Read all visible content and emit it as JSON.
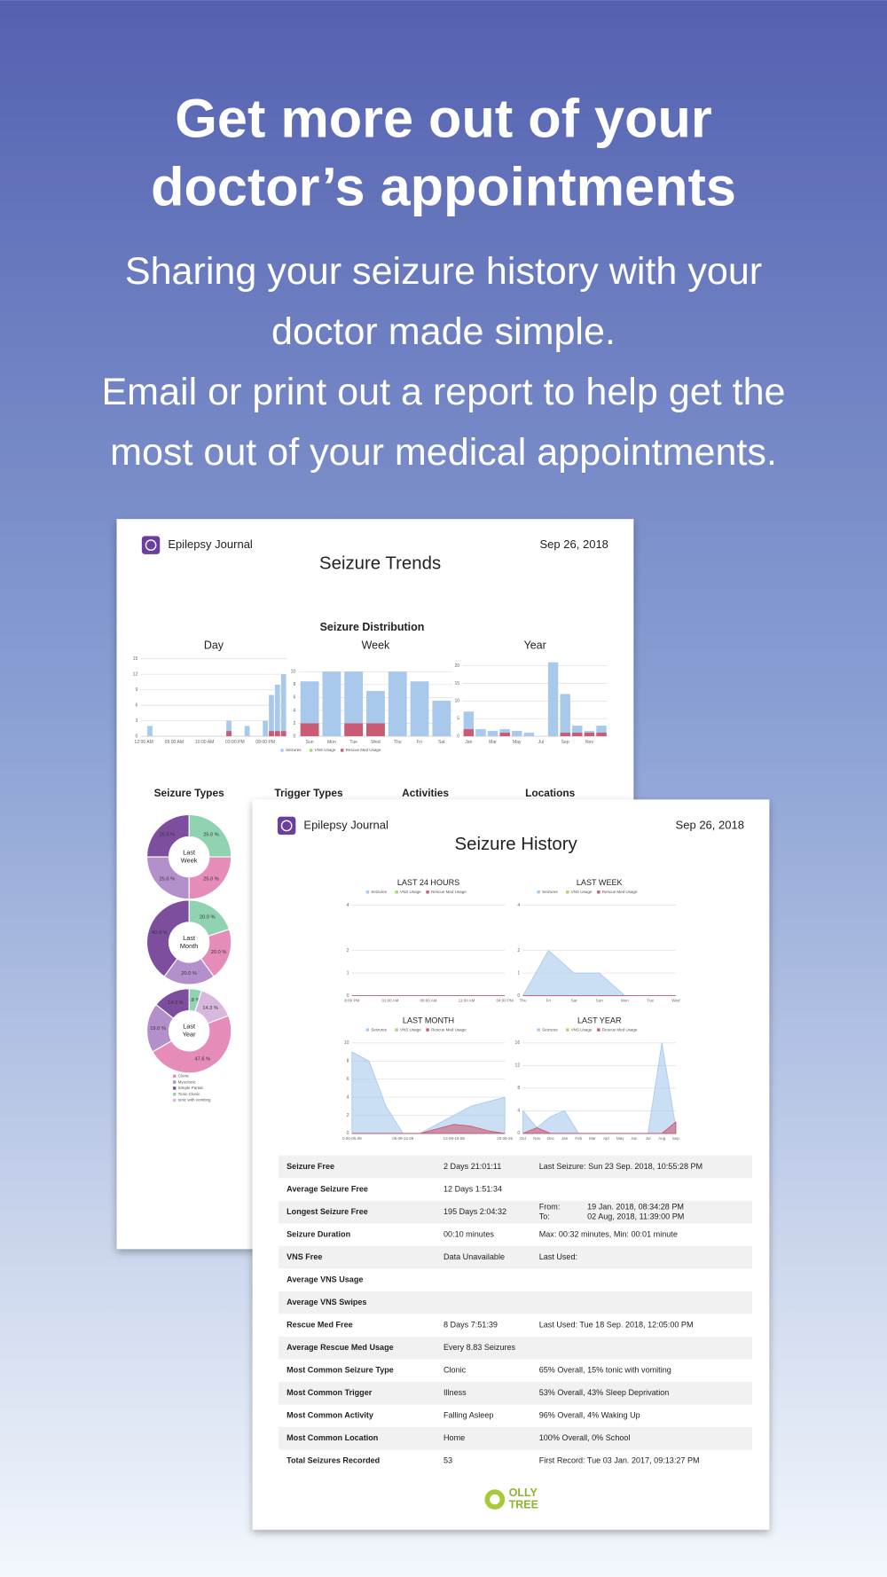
{
  "header": {
    "title_lines": [
      "Get more out of your",
      "doctor’s appointments"
    ],
    "subtitle_lines": [
      "Sharing your seizure history with your",
      "doctor made simple.",
      "Email or print out a report to help get the",
      "most out of your medical appointments."
    ]
  },
  "trends_report": {
    "app_name": "Epilepsy Journal",
    "date": "Sep 26, 2018",
    "title": "Seizure Trends",
    "distribution_title": "Seizure Distribution",
    "charts": [
      {
        "type": "bar",
        "title": "Day",
        "categories": [
          "12:00 AM",
          null,
          null,
          null,
          null,
          "05:00 AM",
          null,
          null,
          null,
          null,
          "10:00 AM",
          null,
          null,
          null,
          null,
          "03:00 PM",
          null,
          null,
          null,
          null,
          "08:00 PM",
          null,
          null,
          null
        ],
        "ylim": [
          0,
          15
        ],
        "yticks": [
          0,
          3,
          6,
          9,
          12,
          15
        ],
        "series": [
          {
            "name": "Seizures",
            "color": "#a9c9ec",
            "values": [
              0,
              2,
              0,
              0,
              0,
              0,
              0,
              0,
              0,
              0,
              0,
              0,
              0,
              0,
              3,
              0,
              0,
              2,
              0,
              0,
              3,
              8,
              10,
              12
            ]
          },
          {
            "name": "Rescue Med Usage",
            "color": "#c95b74",
            "values": [
              0,
              0,
              0,
              0,
              0,
              0,
              0,
              0,
              0,
              0,
              0,
              0,
              0,
              0,
              1,
              0,
              0,
              0,
              0,
              0,
              0,
              1,
              1,
              1
            ]
          }
        ]
      },
      {
        "type": "bar",
        "title": "Week",
        "categories": [
          "Sun",
          "Mon",
          "Tue",
          "Wed",
          "Thu",
          "Fri",
          "Sat"
        ],
        "ylim": [
          0,
          12
        ],
        "yticks": [
          0,
          2,
          4,
          6,
          8,
          10
        ],
        "series": [
          {
            "name": "Seizures",
            "color": "#a9c9ec",
            "values": [
              8.5,
              10,
              10,
              7,
              10,
              8.5,
              5.5
            ]
          },
          {
            "name": "Rescue Med Usage",
            "color": "#c95b74",
            "values": [
              2,
              0,
              2,
              2,
              0,
              0,
              0
            ]
          }
        ]
      },
      {
        "type": "bar",
        "title": "Year",
        "categories": [
          "Jan",
          null,
          "Mar",
          null,
          "May",
          null,
          "Jul",
          null,
          "Sep",
          null,
          "Nov",
          null
        ],
        "ylim": [
          0,
          22
        ],
        "yticks": [
          0,
          5,
          10,
          15,
          20
        ],
        "series": [
          {
            "name": "Seizures",
            "color": "#a9c9ec",
            "values": [
              7,
              2,
              1.5,
              2,
              1.5,
              1,
              0,
              21,
              12,
              3,
              1.5,
              3
            ]
          },
          {
            "name": "Rescue Med Usage",
            "color": "#c95b74",
            "values": [
              2,
              0,
              0,
              1,
              0,
              0,
              0,
              0,
              1,
              1,
              1,
              1
            ]
          }
        ]
      }
    ],
    "legend": [
      {
        "name": "Seizures",
        "color": "#a9c9ec"
      },
      {
        "name": "VNS Usage",
        "color": "#a6d96a"
      },
      {
        "name": "Rescue Med Usage",
        "color": "#c95b74"
      }
    ],
    "section_titles": [
      "Seizure Types",
      "Trigger Types",
      "Activities",
      "Locations"
    ],
    "pies": [
      {
        "type": "pie",
        "label_lines": [
          "Last",
          "Week"
        ],
        "values": [
          25,
          25,
          25,
          25
        ],
        "value_labels": [
          "25.0 %",
          "25.0 %",
          "25.0 %",
          "25.0 %"
        ],
        "colors": [
          "#8fd3b0",
          "#e58cb8",
          "#b38fcc",
          "#7d4e9e"
        ]
      },
      {
        "type": "pie",
        "label_lines": [
          "Last",
          "Month"
        ],
        "values": [
          20,
          20,
          20,
          40
        ],
        "value_labels": [
          "20.0 %",
          "20.0 %",
          "20.0 %",
          "40.0 %"
        ],
        "colors": [
          "#8fd3b0",
          "#e58cb8",
          "#b38fcc",
          "#7d4e9e"
        ]
      },
      {
        "type": "pie",
        "label_lines": [
          "Last",
          "Year"
        ],
        "values": [
          4.8,
          14.3,
          47.6,
          19.0,
          14.3
        ],
        "value_labels": [
          "4.8 %",
          "14.3 %",
          "47.6 %",
          "19.0 %",
          "14.3 %"
        ],
        "colors": [
          "#8fd3b0",
          "#d9b8dd",
          "#e58cb8",
          "#b38fcc",
          "#7d4e9e"
        ]
      }
    ],
    "pie_legend": [
      {
        "name": "Clonic",
        "color": "#e58cb8"
      },
      {
        "name": "Myoclonic",
        "color": "#b38fcc"
      },
      {
        "name": "Simple Partial",
        "color": "#7d4e9e"
      },
      {
        "name": "Tonic-Clonic",
        "color": "#8fd3b0"
      },
      {
        "name": "tonic with vomiting",
        "color": "#d9b8dd"
      }
    ]
  },
  "history_report": {
    "app_name": "Epilepsy Journal",
    "date": "Sep 26, 2018",
    "title": "Seizure History",
    "legend": [
      {
        "name": "Seizures",
        "color": "#a9c9ec"
      },
      {
        "name": "VNS Usage",
        "color": "#a6d96a"
      },
      {
        "name": "Rescue Med Usage",
        "color": "#c95b74"
      }
    ],
    "charts": [
      {
        "type": "area",
        "title": "LAST 24 HOURS",
        "categories": [
          "8:00 PM",
          "01:00 AM",
          "06:00 AM",
          "11:00 AM",
          "04:00 PM"
        ],
        "ylim": [
          0,
          4
        ],
        "yticks": [
          0,
          1,
          2,
          4
        ],
        "series": [
          {
            "name": "Seizures",
            "color": "#a9c9ec",
            "values": [
              0,
              0,
              0,
              0,
              0
            ]
          },
          {
            "name": "Rescue Med Usage",
            "color": "#c95b74",
            "values": [
              0,
              0,
              0,
              0,
              0
            ]
          }
        ]
      },
      {
        "type": "area",
        "title": "LAST WEEK",
        "categories": [
          "Thu",
          "Fri",
          "Sat",
          "Sun",
          "Mon",
          "Tue",
          "Wed"
        ],
        "ylim": [
          0,
          4
        ],
        "yticks": [
          0,
          1,
          2,
          4
        ],
        "series": [
          {
            "name": "Seizures",
            "color": "#a9c9ec",
            "values": [
              0,
              2,
              1,
              1,
              0,
              0,
              0
            ]
          },
          {
            "name": "Rescue Med Usage",
            "color": "#c95b74",
            "values": [
              0,
              0,
              0,
              0,
              0,
              0,
              0
            ]
          }
        ]
      },
      {
        "type": "area",
        "title": "LAST MONTH",
        "categories": [
          "0.00-05.09",
          null,
          null,
          "06.09-12.09",
          null,
          null,
          "13.09-19.09",
          null,
          null,
          "20.09-26"
        ],
        "ylim": [
          0,
          10
        ],
        "yticks": [
          0,
          2,
          4,
          6,
          8,
          10
        ],
        "series": [
          {
            "name": "Seizures",
            "color": "#a9c9ec",
            "values": [
              9,
              8,
              3,
              0,
              0,
              1,
              2,
              3,
              3.5,
              4
            ]
          },
          {
            "name": "Rescue Med Usage",
            "color": "#c95b74",
            "values": [
              0,
              0,
              0,
              0,
              0,
              0.5,
              1,
              0.8,
              0.3,
              0
            ]
          }
        ]
      },
      {
        "type": "area",
        "title": "LAST YEAR",
        "categories": [
          "Oct",
          "Nov",
          "Dec",
          "Jan",
          "Feb",
          "Mar",
          "Apr",
          "May",
          "Jun",
          "Jul",
          "Aug",
          "Sep"
        ],
        "ylim": [
          0,
          16
        ],
        "yticks": [
          0,
          4,
          8,
          12,
          16
        ],
        "series": [
          {
            "name": "Seizures",
            "color": "#a9c9ec",
            "values": [
              4,
              1,
              3,
              4,
              0,
              0,
              0,
              0,
              0,
              0,
              16,
              1
            ]
          },
          {
            "name": "Rescue Med Usage",
            "color": "#c95b74",
            "values": [
              0,
              1,
              0,
              0,
              0,
              0,
              0,
              0,
              0,
              0,
              0,
              2
            ]
          }
        ]
      }
    ],
    "table": [
      [
        "Seizure Free",
        "2 Days 21:01:11",
        "Last Seizure: Sun 23 Sep. 2018, 10:55:28 PM"
      ],
      [
        "Average Seizure Free",
        "12 Days 1:51:34"
      ],
      [
        "Longest Seizure Free",
        "195 Days 2:04:32",
        [
          [
            "From:",
            "19 Jan. 2018, 08:34:28 PM"
          ],
          [
            "To:",
            "02 Aug, 2018, 11:39:00 PM"
          ]
        ]
      ],
      [
        "Seizure Duration",
        "00:10 minutes",
        "Max: 00:32 minutes, Min: 00:01 minute"
      ],
      [
        "VNS Free",
        "Data Unavailable",
        "Last Used:"
      ],
      [
        "Average VNS Usage"
      ],
      [
        "Average VNS Swipes"
      ],
      [
        "Rescue Med Free",
        "8 Days 7:51:39",
        "Last Used: Tue 18 Sep. 2018, 12:05:00 PM"
      ],
      [
        "Average Rescue Med Usage",
        "Every 8.83 Seizures"
      ],
      [
        "Most Common Seizure Type",
        "Clonic",
        "65% Overall, 15% tonic with vomiting"
      ],
      [
        "Most Common Trigger",
        "Illness",
        "53% Overall, 43% Sleep Deprivation"
      ],
      [
        "Most Common Activity",
        "Falling Asleep",
        "96% Overall, 4% Waking Up"
      ],
      [
        "Most Common Location",
        "Home",
        "100% Overall, 0% School"
      ],
      [
        "Total Seizures Recorded",
        "53",
        "First Record: Tue 03 Jan. 2017, 09:13:27 PM"
      ]
    ],
    "logo_lines": [
      "OLLY",
      "TREE"
    ]
  }
}
